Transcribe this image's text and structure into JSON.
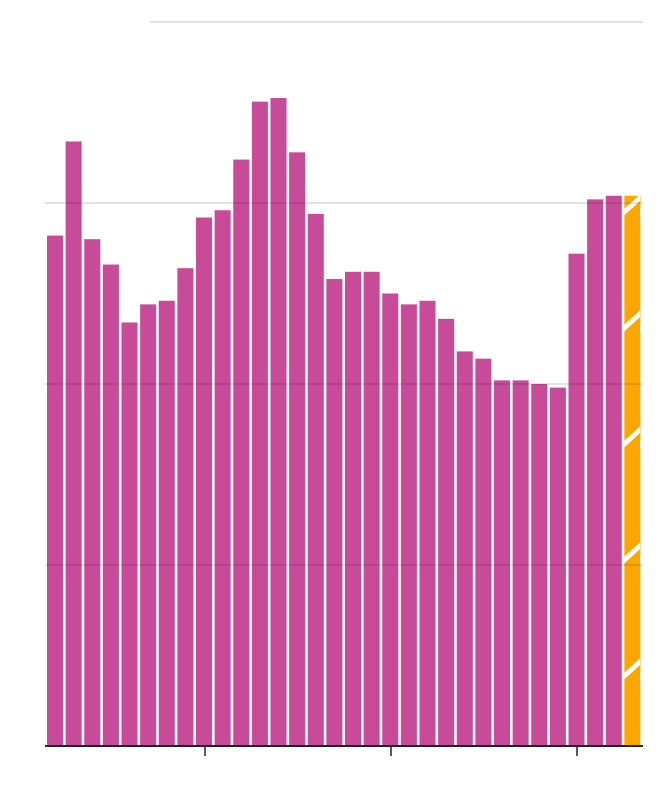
{
  "chart_data": {
    "type": "bar",
    "categories": [
      null,
      null,
      null,
      null,
      null,
      null,
      null,
      null,
      null,
      null,
      null,
      null,
      null,
      null,
      null,
      null,
      null,
      null,
      null,
      null,
      null,
      null,
      null,
      null,
      null,
      null,
      null,
      null,
      null,
      null,
      null,
      null
    ],
    "values": [
      70.5,
      83.5,
      70,
      66.5,
      58.5,
      61,
      61.5,
      66,
      73,
      74,
      81,
      89,
      89.5,
      82,
      73.5,
      64.5,
      65.5,
      65.5,
      62.5,
      61,
      61.5,
      59,
      54.5,
      53.5,
      50.5,
      50.5,
      50,
      49.5,
      68,
      75.5,
      76,
      76
    ],
    "color": "#c84b9a",
    "colors": [
      "#c84b9a",
      "#c84b9a",
      "#c84b9a",
      "#c84b9a",
      "#c84b9a",
      "#c84b9a",
      "#c84b9a",
      "#c84b9a",
      "#c84b9a",
      "#c84b9a",
      "#c84b9a",
      "#c84b9a",
      "#c84b9a",
      "#c84b9a",
      "#c84b9a",
      "#c84b9a",
      "#c84b9a",
      "#c84b9a",
      "#c84b9a",
      "#c84b9a",
      "#c84b9a",
      "#c84b9a",
      "#c84b9a",
      "#c84b9a",
      "#c84b9a",
      "#c84b9a",
      "#c84b9a",
      "#c84b9a",
      "#c84b9a",
      "#c84b9a",
      "#c84b9a",
      "#ffa500"
    ],
    "ylim": [
      0,
      100
    ],
    "yticks": [
      0,
      25,
      50,
      75,
      100
    ],
    "grid": true
  }
}
